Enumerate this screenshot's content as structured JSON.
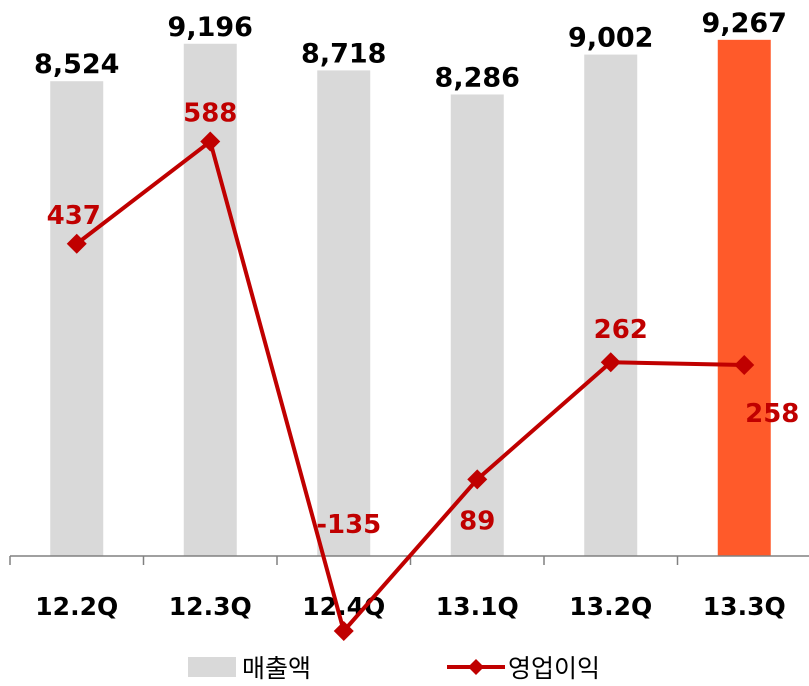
{
  "chart_data": {
    "type": "bar+line",
    "title": "",
    "xlabel": "",
    "ylabel": "",
    "categories": [
      "12.2Q",
      "12.3Q",
      "12.4Q",
      "13.1Q",
      "13.2Q",
      "13.3Q"
    ],
    "series": [
      {
        "name": "매출액",
        "type": "bar",
        "values": [
          8524,
          9196,
          8718,
          8286,
          9002,
          9267
        ],
        "labels": [
          "8,524",
          "9,196",
          "8,718",
          "8,286",
          "9,002",
          "9,267"
        ],
        "color": "#d9d9d9",
        "highlight_index": 5,
        "highlight_color": "#ff5a2a",
        "ylim": [
          0,
          9800
        ]
      },
      {
        "name": "영업이익",
        "type": "line",
        "values": [
          437,
          588,
          -135,
          89,
          262,
          258
        ],
        "labels": [
          "437",
          "588",
          "-135",
          "89",
          "262",
          "258"
        ],
        "color": "#c00000",
        "marker": "diamond",
        "ylim": [
          -135,
          980
        ]
      }
    ],
    "legend": "bottom",
    "grid": false
  }
}
